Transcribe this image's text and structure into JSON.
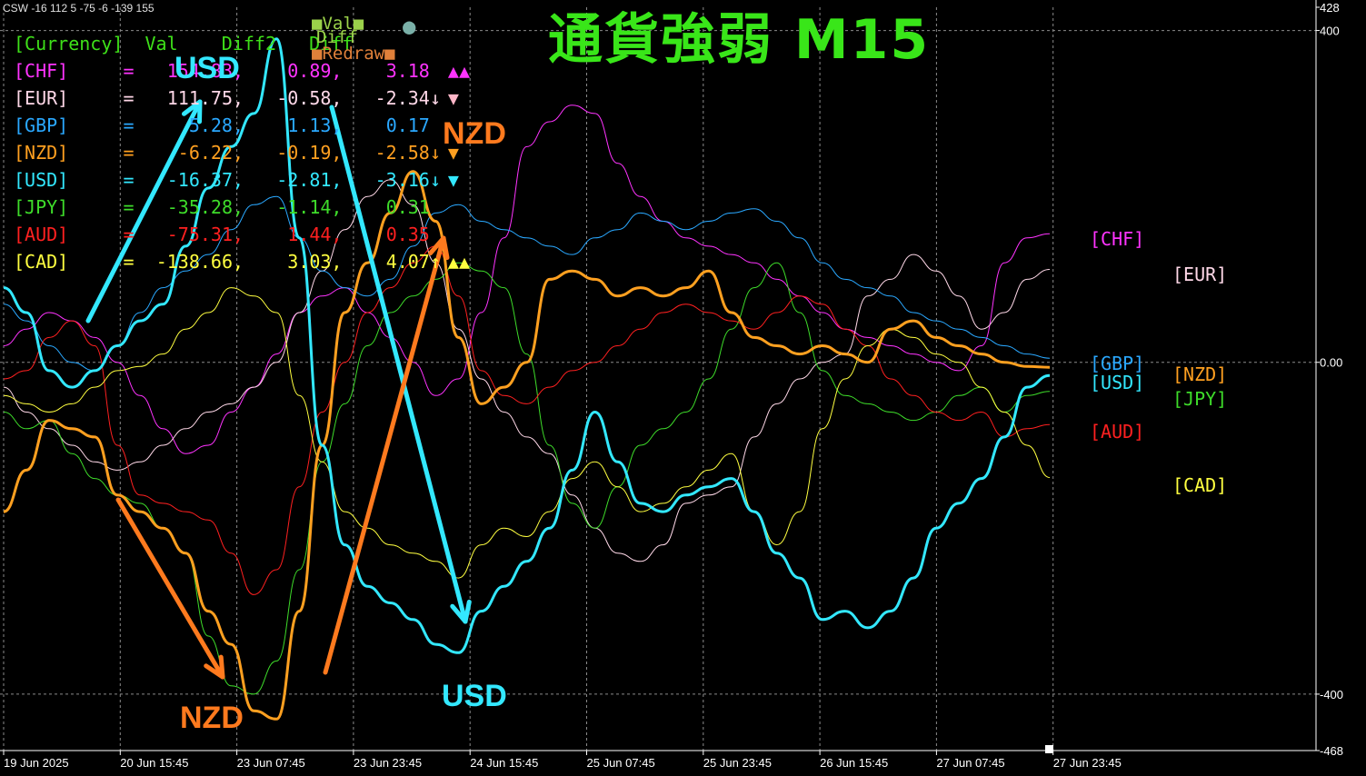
{
  "indicator": {
    "label": "CSW -16 112 5 -75 -6 -139 155"
  },
  "title": "通貨強弱 M15",
  "table": {
    "header": "[Currency]  Val    Diff2   Diff",
    "rows": [
      {
        "name": "[CHF]",
        "eq": "=",
        "val": "154.83,",
        "diff2": "0.89,",
        "diff": "3.18",
        "arrow": "",
        "marks": "▲▲",
        "color": "#ff33ff",
        "mark_color": "#ff33ff"
      },
      {
        "name": "[EUR]",
        "eq": "=",
        "val": "111.75,",
        "diff2": "-0.58,",
        "diff": "-2.34",
        "arrow": "↓",
        "marks": "▼",
        "color": "#ffd8e8",
        "mark_color": "#ffb6c8"
      },
      {
        "name": "[GBP]",
        "eq": "=",
        "val": "5.28,",
        "diff2": "1.13,",
        "diff": "0.17",
        "arrow": "",
        "marks": "",
        "color": "#2aa8ff",
        "mark_color": "#2aa8ff"
      },
      {
        "name": "[NZD]",
        "eq": "=",
        "val": "-6.22,",
        "diff2": "-0.19,",
        "diff": "-2.58",
        "arrow": "↓",
        "marks": "▼",
        "color": "#ffa020",
        "mark_color": "#ffa020"
      },
      {
        "name": "[USD]",
        "eq": "=",
        "val": "-16.37,",
        "diff2": "-2.81,",
        "diff": "-3.16",
        "arrow": "↓",
        "marks": "▼",
        "color": "#33e8ff",
        "mark_color": "#33e8ff"
      },
      {
        "name": "[JPY]",
        "eq": "=",
        "val": "-35.28,",
        "diff2": "-1.14,",
        "diff": "0.31",
        "arrow": "",
        "marks": "",
        "color": "#3edc2a",
        "mark_color": "#3edc2a"
      },
      {
        "name": "[AUD]",
        "eq": "=",
        "val": "-75.31,",
        "diff2": "1.44,",
        "diff": "0.35",
        "arrow": "",
        "marks": "",
        "color": "#ff2020",
        "mark_color": "#ff2020"
      },
      {
        "name": "[CAD]",
        "eq": "=",
        "val": "-138.66,",
        "diff2": "3.03,",
        "diff": "4.07",
        "arrow": "↑",
        "marks": "▲▲",
        "color": "#ffff40",
        "mark_color": "#ffff40"
      }
    ]
  },
  "legend_chips": [
    {
      "label": "■Val■",
      "color": "#9bd24a"
    },
    {
      "label": "●",
      "color": "#7ab0a8"
    },
    {
      "label": "Diff",
      "color": "#9bd24a"
    },
    {
      "label": "■Redraw■",
      "color": "#e0803a"
    }
  ],
  "annotations": [
    {
      "text": "USD",
      "color": "#33e8ff"
    },
    {
      "text": "NZD",
      "color": "#ff7a1e"
    },
    {
      "text": "NZD",
      "color": "#ff7a1e"
    },
    {
      "text": "USD",
      "color": "#33e8ff"
    }
  ],
  "right_labels": [
    {
      "text": "[CHF]",
      "color": "#ff33ff"
    },
    {
      "text": "[EUR]",
      "color": "#ffd8e8"
    },
    {
      "text": "[GBP]",
      "color": "#2aa8ff"
    },
    {
      "text": "[USD]",
      "color": "#33e8ff"
    },
    {
      "text": "[NZD]",
      "color": "#ffa020"
    },
    {
      "text": "[JPY]",
      "color": "#3edc2a"
    },
    {
      "text": "[AUD]",
      "color": "#ff2020"
    },
    {
      "text": "[CAD]",
      "color": "#ffff40"
    }
  ],
  "chart_data": {
    "type": "line",
    "y_axis": {
      "min": -468,
      "max": 428,
      "tick_labels": [
        "428",
        "400",
        "0.00",
        "-400",
        "-468"
      ],
      "tick_values": [
        428,
        400,
        0,
        -400,
        -468
      ]
    },
    "x_labels": [
      "19 Jun 2025",
      "20 Jun 15:45",
      "23 Jun 07:45",
      "23 Jun 23:45",
      "24 Jun 15:45",
      "25 Jun 07:45",
      "25 Jun 23:45",
      "26 Jun 15:45",
      "27 Jun 07:45",
      "27 Jun 23:45"
    ],
    "grid": true,
    "series": [
      {
        "name": "CHF",
        "color": "#ff33ff",
        "width": 1,
        "values": [
          20,
          40,
          60,
          50,
          30,
          0,
          -40,
          -80,
          -110,
          -100,
          -60,
          -30,
          10,
          60,
          80,
          90,
          60,
          30,
          0,
          -40,
          -20,
          60,
          150,
          260,
          290,
          310,
          300,
          240,
          200,
          170,
          150,
          140,
          130,
          120,
          100,
          80,
          60,
          40,
          30,
          20,
          10,
          0,
          -10,
          20,
          120,
          150,
          155
        ]
      },
      {
        "name": "EUR",
        "color": "#ffd8e8",
        "width": 1,
        "values": [
          -30,
          -60,
          -80,
          -100,
          -120,
          -130,
          -120,
          -100,
          -80,
          -60,
          -50,
          -30,
          0,
          60,
          110,
          160,
          200,
          220,
          190,
          120,
          40,
          -20,
          -60,
          -90,
          -110,
          -160,
          -200,
          -230,
          -240,
          -220,
          -170,
          -160,
          -150,
          -90,
          -50,
          -20,
          0,
          10,
          80,
          100,
          130,
          110,
          80,
          40,
          60,
          100,
          112
        ]
      },
      {
        "name": "GBP",
        "color": "#2aa8ff",
        "width": 1,
        "values": [
          70,
          50,
          20,
          0,
          -10,
          20,
          60,
          90,
          110,
          130,
          160,
          190,
          200,
          150,
          110,
          90,
          80,
          100,
          140,
          180,
          190,
          170,
          160,
          150,
          140,
          130,
          150,
          160,
          180,
          170,
          160,
          170,
          180,
          185,
          170,
          150,
          120,
          100,
          90,
          80,
          60,
          50,
          40,
          30,
          20,
          10,
          5
        ]
      },
      {
        "name": "NZD",
        "color": "#ffa020",
        "width": 3,
        "values": [
          -180,
          -130,
          -70,
          -80,
          -90,
          -160,
          -180,
          -200,
          -230,
          -300,
          -340,
          -420,
          -430,
          -300,
          -100,
          60,
          120,
          180,
          230,
          170,
          30,
          -50,
          -30,
          0,
          100,
          110,
          100,
          80,
          90,
          80,
          90,
          110,
          60,
          30,
          20,
          10,
          20,
          10,
          0,
          40,
          50,
          30,
          20,
          10,
          0,
          -5,
          -6
        ]
      },
      {
        "name": "USD",
        "color": "#33e8ff",
        "width": 3,
        "values": [
          90,
          60,
          -10,
          -30,
          -10,
          20,
          50,
          70,
          140,
          210,
          260,
          300,
          390,
          150,
          -100,
          -220,
          -270,
          -290,
          -310,
          -340,
          -350,
          -300,
          -270,
          -240,
          -200,
          -130,
          -60,
          -120,
          -170,
          -180,
          -160,
          -150,
          -140,
          -180,
          -230,
          -260,
          -310,
          -300,
          -320,
          -300,
          -260,
          -200,
          -170,
          -140,
          -90,
          -30,
          -16
        ]
      },
      {
        "name": "JPY",
        "color": "#3edc2a",
        "width": 1,
        "values": [
          -60,
          -80,
          -70,
          -110,
          -140,
          -160,
          -170,
          -200,
          -230,
          -330,
          -390,
          -400,
          -360,
          -250,
          -120,
          -50,
          20,
          60,
          80,
          100,
          120,
          110,
          90,
          10,
          -100,
          -170,
          -200,
          -150,
          -100,
          -80,
          -60,
          -20,
          40,
          90,
          120,
          60,
          -10,
          -40,
          -50,
          -60,
          -70,
          -60,
          -40,
          -30,
          -60,
          -40,
          -35
        ]
      },
      {
        "name": "AUD",
        "color": "#ff2020",
        "width": 1,
        "values": [
          -20,
          -10,
          30,
          50,
          20,
          -100,
          -160,
          -170,
          -180,
          -190,
          -230,
          -280,
          -250,
          -150,
          -60,
          0,
          60,
          90,
          120,
          140,
          80,
          -10,
          -40,
          -50,
          -30,
          -10,
          0,
          20,
          40,
          60,
          70,
          60,
          50,
          40,
          60,
          80,
          70,
          40,
          20,
          -20,
          -40,
          -60,
          -70,
          -60,
          -90,
          -80,
          -75
        ]
      },
      {
        "name": "CAD",
        "color": "#ffff40",
        "width": 1,
        "values": [
          -40,
          -50,
          -60,
          -50,
          -30,
          -10,
          -5,
          10,
          40,
          60,
          90,
          80,
          60,
          -40,
          -120,
          -180,
          -200,
          -220,
          -230,
          -240,
          -260,
          -220,
          -200,
          -210,
          -180,
          -140,
          -120,
          -150,
          -180,
          -170,
          -150,
          -130,
          -110,
          -180,
          -220,
          -180,
          -80,
          -20,
          20,
          40,
          30,
          10,
          0,
          -30,
          -60,
          -100,
          -139
        ]
      }
    ]
  }
}
